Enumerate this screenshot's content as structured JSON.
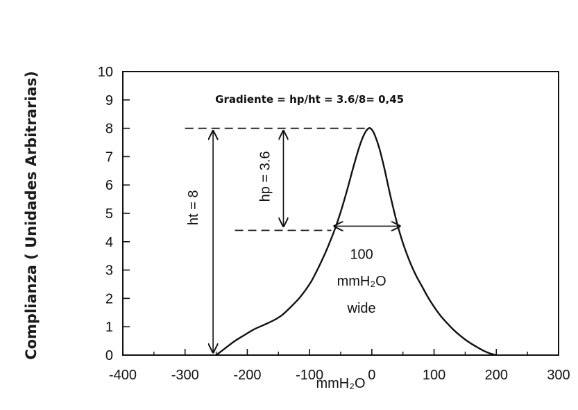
{
  "chart_data": {
    "type": "line",
    "ylabel": "Complianza ( Unidades Arbitrarias)",
    "xlabel": "mmH₂O",
    "xlim": [
      -400,
      300
    ],
    "ylim": [
      0,
      10
    ],
    "xticks": [
      "-400",
      "-300",
      "-200",
      "-100",
      "0",
      "100",
      "200",
      "300"
    ],
    "yticks": [
      "0",
      "1",
      "2",
      "3",
      "4",
      "5",
      "6",
      "7",
      "8",
      "9",
      "10"
    ],
    "grid": false,
    "series": [
      {
        "x": [
          -250,
          -235,
          -220,
          -205,
          -190,
          -175,
          -160,
          -145,
          -130,
          -115,
          -100,
          -90,
          -80,
          -70,
          -60,
          -50,
          -40,
          -30,
          -20,
          -12,
          -5,
          0,
          5,
          12,
          20,
          30,
          40,
          50,
          60,
          70,
          80,
          90,
          100,
          110,
          120,
          130,
          140,
          150,
          160,
          170,
          180,
          190,
          200
        ],
        "y": [
          0,
          0.25,
          0.5,
          0.7,
          0.9,
          1.05,
          1.2,
          1.4,
          1.7,
          2.05,
          2.5,
          2.9,
          3.35,
          3.85,
          4.4,
          5.05,
          5.8,
          6.6,
          7.35,
          7.8,
          8.0,
          7.95,
          7.75,
          7.3,
          6.6,
          5.6,
          4.7,
          3.95,
          3.35,
          2.85,
          2.45,
          2.05,
          1.7,
          1.4,
          1.15,
          0.92,
          0.72,
          0.55,
          0.4,
          0.27,
          0.15,
          0.06,
          0
        ]
      }
    ],
    "annotations": {
      "formula": "Gradiente = hp/ht = 3.6/8= 0,45",
      "ht_label": "ht = 8",
      "hp_label": "hp = 3.6",
      "width_line1": "100",
      "width_line2": "mmH₂O",
      "width_line3": "wide",
      "peak_y": 8,
      "half_y": 4.4,
      "ht_x": -255,
      "hp_x": -142,
      "peak_line_from_x": -300,
      "half_line_from_x": -220,
      "width_from_x": -60,
      "width_to_x": 45
    }
  }
}
